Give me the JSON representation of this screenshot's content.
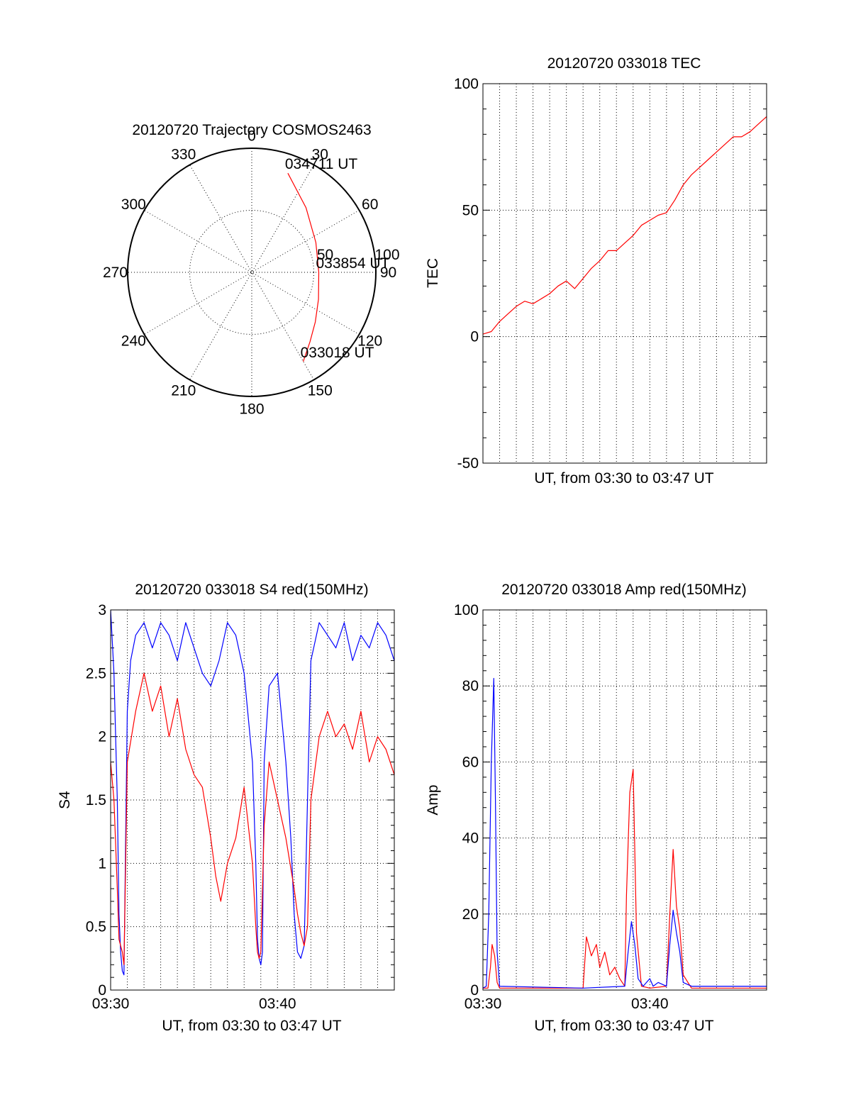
{
  "chart_data": [
    {
      "id": "polar",
      "type": "scatter",
      "subtype": "polar-trajectory",
      "title": "20120720 Trajectory COSMOS2463",
      "angle_ticks": [
        "0",
        "30",
        "60",
        "90",
        "120",
        "150",
        "180",
        "210",
        "240",
        "270",
        "300",
        "330"
      ],
      "radial_ticks": [
        "50",
        "100"
      ],
      "rlim": [
        0,
        100
      ],
      "series": [
        {
          "color": "#ff0000",
          "points": [
            [
              20,
              85
            ],
            [
              40,
              68
            ],
            [
              65,
              57
            ],
            [
              90,
              54
            ],
            [
              112,
              58
            ],
            [
              128,
              65
            ],
            [
              140,
              73
            ],
            [
              150,
              83
            ]
          ]
        }
      ],
      "annotations": [
        {
          "text": "034711 UT",
          "az": 20,
          "r": 85
        },
        {
          "text": "033854 UT",
          "az": 90,
          "r": 54
        },
        {
          "text": "033018 UT",
          "az": 150,
          "r": 83
        }
      ]
    },
    {
      "id": "tec",
      "type": "line",
      "title": "20120720 033018 TEC",
      "xlabel": "UT, from 03:30 to 03:47 UT",
      "ylabel": "TEC",
      "ylim": [
        -50,
        100
      ],
      "yticks": [
        "-50",
        "0",
        "50",
        "100"
      ],
      "xlim": [
        0,
        17
      ],
      "grid": true,
      "series": [
        {
          "color": "#ff0000",
          "x": [
            0.0,
            0.5,
            1.0,
            1.5,
            2.0,
            2.5,
            3.0,
            3.5,
            4.0,
            4.5,
            5.0,
            5.5,
            6.0,
            6.5,
            7.0,
            7.5,
            8.0,
            8.5,
            9.0,
            9.5,
            10.0,
            10.5,
            11.0,
            11.5,
            12.0,
            12.5,
            13.0,
            13.5,
            14.0,
            14.5,
            15.0,
            15.5,
            16.0,
            16.5,
            17.0
          ],
          "y": [
            1,
            2,
            6,
            9,
            12,
            14,
            13,
            15,
            17,
            20,
            22,
            19,
            23,
            27,
            30,
            34,
            34,
            37,
            40,
            44,
            46,
            48,
            49,
            54,
            60,
            64,
            67,
            70,
            73,
            76,
            79,
            79,
            81,
            84,
            87
          ]
        }
      ]
    },
    {
      "id": "s4",
      "type": "line",
      "title": "20120720 033018 S4 red(150MHz)",
      "xlabel": "UT, from 03:30 to 03:47 UT",
      "ylabel": "S4",
      "ylim": [
        0,
        3
      ],
      "yticks": [
        "0",
        "0.5",
        "1",
        "1.5",
        "2",
        "2.5",
        "3"
      ],
      "xlim": [
        0,
        17
      ],
      "xticks": [
        {
          "value": 0,
          "label": "03:30"
        },
        {
          "value": 10,
          "label": "03:40"
        }
      ],
      "grid": true,
      "series": [
        {
          "color": "#0000ff",
          "x": [
            0.0,
            0.2,
            0.4,
            0.5,
            0.6,
            0.7,
            0.8,
            0.9,
            1.0,
            1.2,
            1.5,
            2.0,
            2.5,
            3.0,
            3.5,
            4.0,
            4.5,
            5.0,
            5.5,
            6.0,
            6.5,
            7.0,
            7.5,
            8.0,
            8.5,
            8.7,
            8.8,
            8.9,
            9.0,
            9.1,
            9.2,
            9.5,
            10.0,
            10.5,
            10.8,
            11.0,
            11.2,
            11.4,
            11.6,
            11.8,
            12.0,
            12.5,
            13.0,
            13.5,
            14.0,
            14.5,
            15.0,
            15.5,
            16.0,
            16.5,
            17.0
          ],
          "y": [
            3.0,
            2.5,
            1.5,
            0.6,
            0.3,
            0.15,
            0.12,
            1.2,
            2.2,
            2.6,
            2.8,
            2.9,
            2.7,
            2.9,
            2.8,
            2.6,
            2.9,
            2.7,
            2.5,
            2.4,
            2.6,
            2.9,
            2.8,
            2.5,
            1.8,
            1.0,
            0.4,
            0.25,
            0.2,
            0.3,
            1.8,
            2.4,
            2.5,
            1.8,
            1.2,
            0.6,
            0.3,
            0.25,
            0.35,
            1.5,
            2.6,
            2.9,
            2.8,
            2.7,
            2.9,
            2.6,
            2.8,
            2.7,
            2.9,
            2.8,
            2.6
          ]
        },
        {
          "color": "#ff0000",
          "x": [
            0.0,
            0.2,
            0.4,
            0.5,
            0.6,
            0.7,
            0.8,
            0.9,
            1.0,
            1.5,
            2.0,
            2.5,
            3.0,
            3.5,
            4.0,
            4.5,
            5.0,
            5.5,
            6.0,
            6.3,
            6.6,
            7.0,
            7.5,
            8.0,
            8.5,
            8.7,
            8.8,
            8.9,
            9.0,
            9.2,
            9.5,
            10.0,
            10.5,
            11.0,
            11.2,
            11.4,
            11.6,
            11.8,
            12.0,
            12.5,
            13.0,
            13.5,
            14.0,
            14.5,
            15.0,
            15.5,
            16.0,
            16.5,
            17.0
          ],
          "y": [
            1.8,
            1.5,
            0.8,
            0.4,
            0.35,
            0.3,
            0.2,
            1.0,
            1.8,
            2.2,
            2.5,
            2.2,
            2.4,
            2.0,
            2.3,
            1.9,
            1.7,
            1.6,
            1.2,
            0.9,
            0.7,
            1.0,
            1.2,
            1.6,
            1.0,
            0.5,
            0.3,
            0.25,
            0.3,
            1.3,
            1.8,
            1.5,
            1.2,
            0.8,
            0.6,
            0.45,
            0.35,
            0.5,
            1.5,
            2.0,
            2.2,
            2.0,
            2.1,
            1.9,
            2.2,
            1.8,
            2.0,
            1.9,
            1.7
          ]
        }
      ]
    },
    {
      "id": "amp",
      "type": "line",
      "title": "20120720 033018 Amp red(150MHz)",
      "xlabel": "UT, from 03:30 to 03:47 UT",
      "ylabel": "Amp",
      "ylim": [
        0,
        100
      ],
      "yticks": [
        "0",
        "20",
        "40",
        "60",
        "80",
        "100"
      ],
      "xlim": [
        0,
        17
      ],
      "xticks": [
        {
          "value": 0,
          "label": "03:30"
        },
        {
          "value": 10,
          "label": "03:40"
        }
      ],
      "grid": true,
      "series": [
        {
          "color": "#ff0000",
          "x": [
            0.0,
            0.3,
            0.45,
            0.55,
            0.7,
            0.85,
            1.0,
            6.0,
            6.2,
            6.5,
            6.8,
            7.0,
            7.3,
            7.6,
            7.9,
            8.2,
            8.5,
            8.6,
            8.8,
            9.0,
            9.2,
            9.5,
            10.0,
            11.0,
            11.2,
            11.4,
            11.6,
            11.8,
            12.0,
            12.5,
            17.0
          ],
          "y": [
            0.5,
            0.5,
            6,
            12,
            9,
            2,
            0.5,
            0.5,
            14,
            9,
            12,
            6,
            10,
            4,
            6,
            3,
            1,
            25,
            52,
            58,
            15,
            1,
            0.5,
            1,
            20,
            37,
            22,
            16,
            4,
            0.5,
            0.5
          ]
        },
        {
          "color": "#0000ff",
          "x": [
            0.0,
            0.2,
            0.35,
            0.5,
            0.65,
            0.75,
            0.85,
            1.0,
            6.0,
            8.5,
            8.7,
            8.9,
            9.1,
            9.3,
            9.6,
            10.0,
            10.2,
            10.5,
            11.0,
            11.2,
            11.4,
            11.6,
            11.8,
            12.0,
            12.5,
            17.0
          ],
          "y": [
            0.5,
            1,
            20,
            60,
            82,
            50,
            10,
            1,
            0.5,
            1,
            10,
            18,
            12,
            3,
            1,
            3,
            1,
            2,
            1,
            12,
            21,
            15,
            10,
            2,
            1,
            1
          ]
        }
      ]
    }
  ]
}
